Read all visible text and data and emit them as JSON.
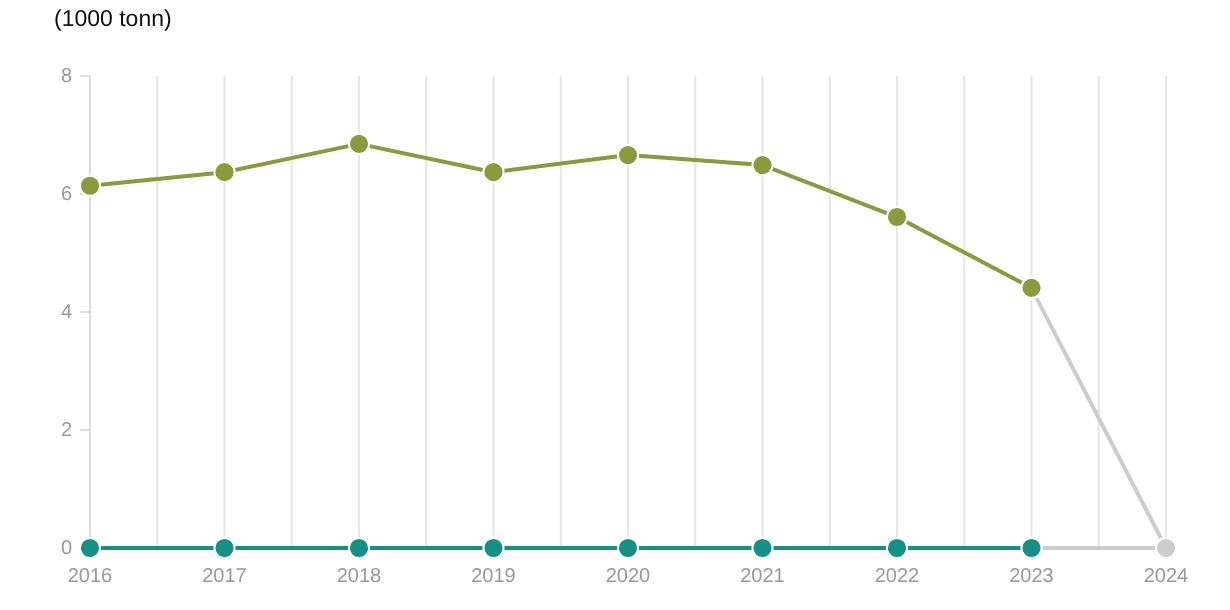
{
  "chart_data": {
    "type": "line",
    "ylabel": "(1000 tonn)",
    "xlim": [
      2016,
      2024
    ],
    "xticks": [
      2016,
      {
        "value": 2016.5,
        "label": null
      },
      2017,
      {
        "value": 2017.5,
        "label": null
      },
      2018,
      {
        "value": 2018.5,
        "label": null
      },
      2019,
      {
        "value": 2019.5,
        "label": null
      },
      2020,
      {
        "value": 2020.5,
        "label": null
      },
      2021,
      {
        "value": 2021.5,
        "label": null
      },
      2022,
      {
        "value": 2022.5,
        "label": null
      },
      2023,
      {
        "value": 2023.5,
        "label": null
      },
      2024
    ],
    "ylim": [
      0,
      8
    ],
    "yticks": [
      0,
      2,
      4,
      6,
      8
    ],
    "grid": "x",
    "marker": "circle",
    "line_style": "solid",
    "series": [
      {
        "color": "#cccccc",
        "x": [
          2023,
          2024
        ],
        "values": [
          4.4,
          0
        ]
      },
      {
        "color": "#cccccc",
        "x": [
          2023,
          2024
        ],
        "values": [
          0,
          0
        ]
      },
      {
        "color": "#8a9a3c",
        "x": [
          2016,
          2017,
          2018,
          2019,
          2020,
          2021,
          2022,
          2023
        ],
        "values": [
          6.14,
          6.37,
          6.85,
          6.37,
          6.66,
          6.49,
          5.61,
          4.41
        ]
      },
      {
        "color": "#149184",
        "x": [
          2016,
          2017,
          2018,
          2019,
          2020,
          2021,
          2022,
          2023
        ],
        "values": [
          0,
          0,
          0,
          0,
          0,
          0,
          0,
          0
        ]
      }
    ]
  }
}
